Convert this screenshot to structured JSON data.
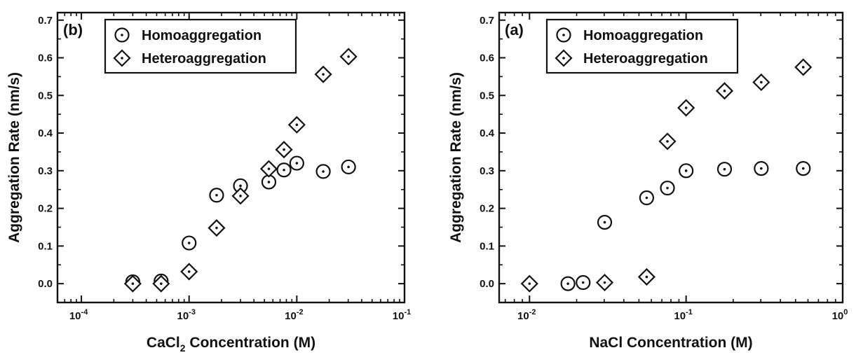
{
  "chart_data": [
    {
      "type": "scatter",
      "panel_label": "(b)",
      "xlabel_prefix": "CaCl",
      "xlabel_sub": "2",
      "xlabel_suffix": " Concentration (M)",
      "ylabel": "Aggregation Rate (nm/s)",
      "xscale": "log",
      "xlim": [
        6e-05,
        0.1
      ],
      "ylim": [
        -0.05,
        0.72
      ],
      "x_tick_labels": [
        {
          "base": "10",
          "exp": "-4",
          "value": 0.0001
        },
        {
          "base": "10",
          "exp": "-3",
          "value": 0.001
        },
        {
          "base": "10",
          "exp": "-2",
          "value": 0.01
        },
        {
          "base": "10",
          "exp": "-1",
          "value": 0.1
        }
      ],
      "y_ticks": [
        0.0,
        0.1,
        0.2,
        0.3,
        0.4,
        0.5,
        0.6,
        0.7
      ],
      "y_tick_labels": [
        "0.0",
        "0.1",
        "0.2",
        "0.3",
        "0.4",
        "0.5",
        "0.6",
        "0.7"
      ],
      "legend": "top-left",
      "series": [
        {
          "name": "Homoaggregation",
          "marker": "circle",
          "x": [
            0.0003,
            0.00055,
            0.001,
            0.0018,
            0.003,
            0.0055,
            0.0076,
            0.01,
            0.0176,
            0.0302
          ],
          "y": [
            0.005,
            0.007,
            0.108,
            0.235,
            0.26,
            0.27,
            0.302,
            0.32,
            0.298,
            0.31
          ]
        },
        {
          "name": "Heteroaggregation",
          "marker": "diamond",
          "x": [
            0.0003,
            0.00055,
            0.001,
            0.0018,
            0.003,
            0.0055,
            0.0076,
            0.01,
            0.0176,
            0.0302
          ],
          "y": [
            0.0,
            0.0,
            0.032,
            0.148,
            0.233,
            0.305,
            0.356,
            0.422,
            0.556,
            0.603
          ]
        }
      ]
    },
    {
      "type": "scatter",
      "panel_label": "(a)",
      "xlabel_prefix": "NaCl Concentration (M)",
      "xlabel_sub": "",
      "xlabel_suffix": "",
      "ylabel": "Aggregation Rate (nm/s)",
      "xscale": "log",
      "xlim": [
        0.0064,
        1.0
      ],
      "ylim": [
        -0.05,
        0.72
      ],
      "x_tick_labels": [
        {
          "base": "10",
          "exp": "-2",
          "value": 0.01
        },
        {
          "base": "10",
          "exp": "-1",
          "value": 0.1
        },
        {
          "base": "10",
          "exp": "0",
          "value": 1.0
        }
      ],
      "y_ticks": [
        0.0,
        0.1,
        0.2,
        0.3,
        0.4,
        0.5,
        0.6,
        0.7
      ],
      "y_tick_labels": [
        "0.0",
        "0.1",
        "0.2",
        "0.3",
        "0.4",
        "0.5",
        "0.6",
        "0.7"
      ],
      "legend": "top-left",
      "series": [
        {
          "name": "Homoaggregation",
          "marker": "circle",
          "x": [
            0.0176,
            0.022,
            0.0302,
            0.056,
            0.076,
            0.1,
            0.176,
            0.302,
            0.56
          ],
          "y": [
            0.0,
            0.003,
            0.163,
            0.228,
            0.254,
            0.3,
            0.304,
            0.306,
            0.306
          ]
        },
        {
          "name": "Heteroaggregation",
          "marker": "diamond",
          "x": [
            0.01,
            0.0302,
            0.056,
            0.076,
            0.1,
            0.176,
            0.302,
            0.56
          ],
          "y": [
            0.0,
            0.003,
            0.018,
            0.378,
            0.467,
            0.512,
            0.535,
            0.575
          ]
        }
      ]
    }
  ]
}
